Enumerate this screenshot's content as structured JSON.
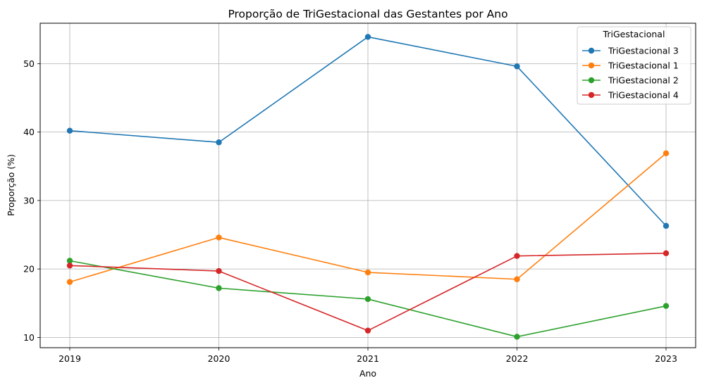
{
  "chart_data": {
    "type": "line",
    "title": "Proporção de TriGestacional das Gestantes por Ano",
    "xlabel": "Ano",
    "ylabel": "Proporção (%)",
    "categories": [
      "2019",
      "2020",
      "2021",
      "2022",
      "2023"
    ],
    "ylim": [
      8.5,
      55.9
    ],
    "yticks": [
      10,
      20,
      30,
      40,
      50
    ],
    "grid": true,
    "legend": {
      "title": "TriGestacional",
      "placement": "top-right"
    },
    "series": [
      {
        "name": "TriGestacional 3",
        "color": "#1f77b4",
        "values": [
          40.2,
          38.5,
          53.9,
          49.6,
          26.3
        ]
      },
      {
        "name": "TriGestacional 1",
        "color": "#ff7f0e",
        "values": [
          18.1,
          24.6,
          19.5,
          18.5,
          36.9
        ]
      },
      {
        "name": "TriGestacional 2",
        "color": "#2ca02c",
        "values": [
          21.2,
          17.2,
          15.6,
          10.1,
          14.6
        ]
      },
      {
        "name": "TriGestacional 4",
        "color": "#d62728",
        "values": [
          20.5,
          19.7,
          11.0,
          21.9,
          22.3
        ]
      }
    ]
  }
}
